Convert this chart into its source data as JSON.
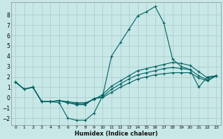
{
  "xlabel": "Humidex (Indice chaleur)",
  "background_color": "#c8e8e8",
  "grid_color": "#b0cccc",
  "line_color": "#006060",
  "xlim": [
    -0.5,
    23.5
  ],
  "ylim": [
    -2.7,
    9.2
  ],
  "xticks": [
    0,
    1,
    2,
    3,
    4,
    5,
    6,
    7,
    8,
    9,
    10,
    11,
    12,
    13,
    14,
    15,
    16,
    17,
    18,
    19,
    20,
    21,
    22,
    23
  ],
  "yticks": [
    -2,
    -1,
    0,
    1,
    2,
    3,
    4,
    5,
    6,
    7,
    8
  ],
  "series": [
    {
      "x": [
        0,
        1,
        2,
        3,
        4,
        5,
        6,
        7,
        8,
        9,
        10,
        11,
        12,
        13,
        14,
        15,
        16,
        17,
        18,
        19,
        20,
        21,
        22,
        23
      ],
      "y": [
        1.5,
        0.8,
        1.0,
        -0.4,
        -0.4,
        -0.5,
        -2.0,
        -2.2,
        -2.2,
        -1.5,
        0.2,
        4.0,
        5.3,
        6.6,
        7.9,
        8.3,
        8.8,
        7.2,
        3.7,
        3.0,
        2.7,
        1.0,
        2.0,
        2.1
      ]
    },
    {
      "x": [
        0,
        1,
        2,
        3,
        4,
        5,
        6,
        7,
        8,
        9,
        10,
        11,
        12,
        13,
        14,
        15,
        16,
        17,
        18,
        19,
        20,
        21,
        22,
        23
      ],
      "y": [
        1.5,
        0.8,
        1.0,
        -0.4,
        -0.4,
        -0.3,
        -0.4,
        -0.5,
        -0.5,
        -0.2,
        0.3,
        1.1,
        1.6,
        2.1,
        2.6,
        2.8,
        3.0,
        3.2,
        3.4,
        3.3,
        3.1,
        2.5,
        1.9,
        2.1
      ]
    },
    {
      "x": [
        0,
        1,
        2,
        3,
        4,
        5,
        6,
        7,
        8,
        9,
        10,
        11,
        12,
        13,
        14,
        15,
        16,
        17,
        18,
        19,
        20,
        21,
        22,
        23
      ],
      "y": [
        1.5,
        0.8,
        1.0,
        -0.4,
        -0.4,
        -0.3,
        -0.5,
        -0.6,
        -0.6,
        -0.1,
        0.1,
        0.8,
        1.3,
        1.8,
        2.2,
        2.4,
        2.6,
        2.8,
        2.9,
        2.8,
        2.7,
        2.1,
        1.7,
        2.1
      ]
    },
    {
      "x": [
        0,
        1,
        2,
        3,
        4,
        5,
        6,
        7,
        8,
        9,
        10,
        11,
        12,
        13,
        14,
        15,
        16,
        17,
        18,
        19,
        20,
        21,
        22,
        23
      ],
      "y": [
        1.5,
        0.8,
        1.0,
        -0.4,
        -0.4,
        -0.3,
        -0.5,
        -0.7,
        -0.7,
        -0.1,
        0.0,
        0.5,
        1.0,
        1.4,
        1.8,
        2.0,
        2.2,
        2.3,
        2.4,
        2.4,
        2.4,
        1.9,
        1.6,
        2.1
      ]
    }
  ]
}
